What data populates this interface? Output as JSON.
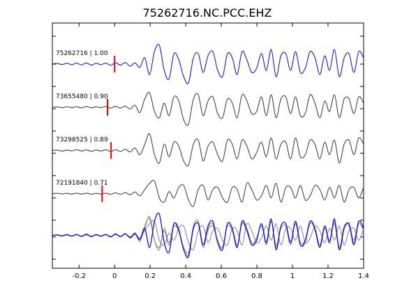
{
  "chart_data": {
    "type": "line",
    "title": "75262716.NC.PCC.EHZ",
    "xlabel": "",
    "ylabel": "",
    "xlim": [
      -0.35,
      1.4
    ],
    "x_ticks": [
      -0.2,
      0,
      0.2,
      0.4,
      0.6,
      0.8,
      1,
      1.2,
      1.4
    ],
    "x_tick_labels": [
      "-0.2",
      "0",
      "0.2",
      "0.4",
      "0.6",
      "0.8",
      "1",
      "1.2",
      "1.4"
    ],
    "grid": false,
    "legend": "none",
    "colors": {
      "reference": "#0000ff",
      "other": "#333333",
      "overlay_gray": "#808080",
      "pick": "#ff0000"
    },
    "series": [
      {
        "name": "75262716 | 1.00",
        "event_id": "75262716",
        "cc": "1.00",
        "pick_time": 0.0,
        "reference": true,
        "amplitudes": [
          0,
          0.03,
          -0.02,
          0.04,
          -0.03,
          0.05,
          -0.04,
          0.06,
          -0.05,
          0.04,
          -0.03,
          0.05,
          -0.06,
          0.07,
          -0.05,
          0.08,
          -0.1,
          0.06,
          -0.15,
          0.3,
          -0.5,
          0.6,
          0.9,
          -0.3,
          -0.7,
          0.5,
          0.2,
          -0.6,
          -0.9,
          0.3,
          0.5,
          -0.4,
          0.4,
          0.6,
          -0.3,
          -0.6,
          0.5,
          0.3,
          -0.5,
          0.6,
          0.2,
          -0.4,
          -0.2,
          0.5,
          -0.3,
          0.7,
          -0.6,
          0.4,
          0.5,
          -0.3,
          0.6,
          -0.4,
          -0.2,
          0.6,
          0.3,
          -0.5,
          0.4,
          -0.3,
          0.7,
          -0.6,
          0.3,
          0.5,
          -0.4,
          0.6,
          0.3
        ]
      },
      {
        "name": "73655480 | 0.90",
        "event_id": "73655480",
        "cc": "0.90",
        "pick_time": -0.04,
        "reference": false,
        "amplitudes": [
          0,
          0.02,
          -0.02,
          0.03,
          -0.02,
          0.03,
          -0.03,
          0.04,
          -0.03,
          0.03,
          -0.02,
          0.04,
          -0.04,
          0.05,
          -0.04,
          0.06,
          -0.08,
          0.1,
          -0.25,
          0.4,
          0.7,
          -0.2,
          -0.5,
          0.2,
          -0.4,
          0.5,
          0.3,
          -0.6,
          -0.8,
          0.4,
          0.6,
          -0.4,
          0.3,
          0.5,
          -0.3,
          -0.5,
          0.4,
          0.2,
          -0.5,
          0.6,
          0.3,
          -0.3,
          -0.2,
          0.5,
          -0.4,
          0.6,
          -0.5,
          0.4,
          0.5,
          -0.3,
          0.5,
          -0.4,
          -0.3,
          0.6,
          0.2,
          -0.5,
          0.3,
          -0.2,
          0.6,
          -0.5,
          0.4,
          0.4,
          -0.3,
          0.5,
          0.2
        ]
      },
      {
        "name": "73298525 | 0.89",
        "event_id": "73298525",
        "cc": "0.89",
        "pick_time": -0.02,
        "reference": false,
        "amplitudes": [
          0,
          0.02,
          -0.03,
          0.02,
          -0.02,
          0.04,
          -0.03,
          0.03,
          -0.04,
          0.03,
          -0.03,
          0.04,
          -0.05,
          0.04,
          -0.05,
          0.06,
          -0.07,
          0.12,
          -0.2,
          0.3,
          0.8,
          -0.2,
          -0.6,
          0.3,
          -0.3,
          0.4,
          0.2,
          -0.5,
          -0.7,
          0.3,
          0.5,
          -0.5,
          0.2,
          0.4,
          -0.2,
          -0.5,
          0.5,
          0.3,
          -0.4,
          0.5,
          0.2,
          -0.4,
          -0.1,
          0.4,
          -0.3,
          0.6,
          -0.4,
          0.3,
          0.4,
          -0.4,
          0.6,
          -0.3,
          -0.2,
          0.5,
          0.3,
          -0.4,
          0.4,
          -0.2,
          0.5,
          -0.6,
          0.3,
          0.5,
          -0.2,
          0.6,
          0.3
        ]
      },
      {
        "name": "72191840 | 0.71",
        "event_id": "72191840",
        "cc": "0.71",
        "pick_time": -0.07,
        "reference": false,
        "amplitudes": [
          0,
          0.02,
          -0.01,
          0.02,
          -0.02,
          0.03,
          -0.02,
          0.03,
          -0.03,
          0.02,
          -0.02,
          0.03,
          -0.03,
          0.04,
          -0.03,
          0.05,
          -0.05,
          0.08,
          -0.1,
          0.2,
          0.5,
          0.6,
          -0.2,
          -0.4,
          0.1,
          -0.2,
          0.3,
          0.4,
          -0.3,
          -0.6,
          0.2,
          0.4,
          -0.3,
          0.2,
          0.3,
          -0.2,
          -0.4,
          0.3,
          0.2,
          -0.4,
          0.5,
          0.2,
          -0.3,
          -0.1,
          0.4,
          -0.2,
          0.5,
          -0.4,
          0.3,
          0.3,
          -0.2,
          0.4,
          -0.3,
          -0.1,
          0.4,
          0.2,
          -0.3,
          0.3,
          -0.2,
          0.4,
          -0.4,
          0.2,
          0.3,
          -0.2,
          0.3
        ]
      }
    ]
  }
}
